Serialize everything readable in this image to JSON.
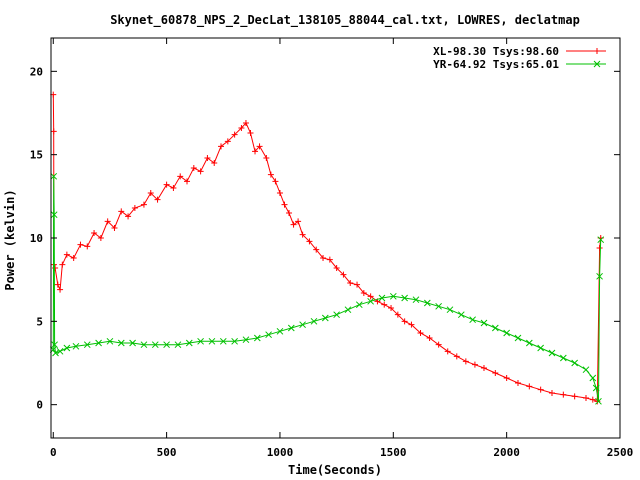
{
  "chart_data": {
    "type": "line",
    "title": "Skynet_60878_NPS_2_DecLat_138105_88044_cal.txt, LOWRES, declatmap",
    "xlabel": "Time(Seconds)",
    "ylabel": "Power (kelvin)",
    "xlim": [
      -10,
      2500
    ],
    "ylim": [
      -2,
      22
    ],
    "x_ticks": [
      0,
      500,
      1000,
      1500,
      2000,
      2500
    ],
    "y_ticks": [
      0,
      5,
      10,
      15,
      20
    ],
    "grid": false,
    "legend_position": "top-right",
    "series": [
      {
        "name": "XL-98.30 Tsys:98.60",
        "color": "#ff0000",
        "marker": "plus",
        "points": [
          [
            0,
            18.6
          ],
          [
            2,
            16.4
          ],
          [
            3,
            8.4
          ],
          [
            8,
            8.2
          ],
          [
            20,
            7.2
          ],
          [
            30,
            6.9
          ],
          [
            40,
            8.4
          ],
          [
            60,
            9.0
          ],
          [
            90,
            8.8
          ],
          [
            120,
            9.6
          ],
          [
            150,
            9.5
          ],
          [
            180,
            10.3
          ],
          [
            210,
            10.0
          ],
          [
            240,
            11.0
          ],
          [
            270,
            10.6
          ],
          [
            300,
            11.6
          ],
          [
            330,
            11.3
          ],
          [
            360,
            11.8
          ],
          [
            400,
            12.0
          ],
          [
            430,
            12.7
          ],
          [
            460,
            12.3
          ],
          [
            500,
            13.2
          ],
          [
            530,
            13.0
          ],
          [
            560,
            13.7
          ],
          [
            590,
            13.4
          ],
          [
            620,
            14.2
          ],
          [
            650,
            14.0
          ],
          [
            680,
            14.8
          ],
          [
            710,
            14.5
          ],
          [
            740,
            15.5
          ],
          [
            770,
            15.8
          ],
          [
            800,
            16.2
          ],
          [
            830,
            16.6
          ],
          [
            850,
            16.9
          ],
          [
            870,
            16.3
          ],
          [
            890,
            15.2
          ],
          [
            910,
            15.5
          ],
          [
            940,
            14.8
          ],
          [
            960,
            13.8
          ],
          [
            980,
            13.4
          ],
          [
            1000,
            12.7
          ],
          [
            1020,
            12.0
          ],
          [
            1040,
            11.5
          ],
          [
            1060,
            10.8
          ],
          [
            1080,
            11.0
          ],
          [
            1100,
            10.2
          ],
          [
            1130,
            9.8
          ],
          [
            1160,
            9.3
          ],
          [
            1190,
            8.8
          ],
          [
            1220,
            8.7
          ],
          [
            1250,
            8.2
          ],
          [
            1280,
            7.8
          ],
          [
            1310,
            7.3
          ],
          [
            1340,
            7.2
          ],
          [
            1370,
            6.7
          ],
          [
            1400,
            6.5
          ],
          [
            1430,
            6.2
          ],
          [
            1460,
            6.0
          ],
          [
            1490,
            5.8
          ],
          [
            1520,
            5.4
          ],
          [
            1550,
            5.0
          ],
          [
            1580,
            4.8
          ],
          [
            1620,
            4.3
          ],
          [
            1660,
            4.0
          ],
          [
            1700,
            3.6
          ],
          [
            1740,
            3.2
          ],
          [
            1780,
            2.9
          ],
          [
            1820,
            2.6
          ],
          [
            1860,
            2.4
          ],
          [
            1900,
            2.2
          ],
          [
            1950,
            1.9
          ],
          [
            2000,
            1.6
          ],
          [
            2050,
            1.3
          ],
          [
            2100,
            1.1
          ],
          [
            2150,
            0.9
          ],
          [
            2200,
            0.7
          ],
          [
            2250,
            0.6
          ],
          [
            2300,
            0.5
          ],
          [
            2350,
            0.4
          ],
          [
            2380,
            0.3
          ],
          [
            2400,
            0.2
          ],
          [
            2410,
            9.4
          ],
          [
            2415,
            10.0
          ]
        ]
      },
      {
        "name": "YR-64.92 Tsys:65.01",
        "color": "#00c000",
        "marker": "cross",
        "points": [
          [
            0,
            3.3
          ],
          [
            2,
            13.7
          ],
          [
            4,
            11.4
          ],
          [
            6,
            3.6
          ],
          [
            10,
            3.1
          ],
          [
            30,
            3.2
          ],
          [
            60,
            3.4
          ],
          [
            100,
            3.5
          ],
          [
            150,
            3.6
          ],
          [
            200,
            3.7
          ],
          [
            250,
            3.8
          ],
          [
            300,
            3.7
          ],
          [
            350,
            3.7
          ],
          [
            400,
            3.6
          ],
          [
            450,
            3.6
          ],
          [
            500,
            3.6
          ],
          [
            550,
            3.6
          ],
          [
            600,
            3.7
          ],
          [
            650,
            3.8
          ],
          [
            700,
            3.8
          ],
          [
            750,
            3.8
          ],
          [
            800,
            3.8
          ],
          [
            850,
            3.9
          ],
          [
            900,
            4.0
          ],
          [
            950,
            4.2
          ],
          [
            1000,
            4.4
          ],
          [
            1050,
            4.6
          ],
          [
            1100,
            4.8
          ],
          [
            1150,
            5.0
          ],
          [
            1200,
            5.2
          ],
          [
            1250,
            5.4
          ],
          [
            1300,
            5.7
          ],
          [
            1350,
            6.0
          ],
          [
            1400,
            6.2
          ],
          [
            1450,
            6.4
          ],
          [
            1500,
            6.5
          ],
          [
            1550,
            6.4
          ],
          [
            1600,
            6.3
          ],
          [
            1650,
            6.1
          ],
          [
            1700,
            5.9
          ],
          [
            1750,
            5.7
          ],
          [
            1800,
            5.4
          ],
          [
            1850,
            5.1
          ],
          [
            1900,
            4.9
          ],
          [
            1950,
            4.6
          ],
          [
            2000,
            4.3
          ],
          [
            2050,
            4.0
          ],
          [
            2100,
            3.7
          ],
          [
            2150,
            3.4
          ],
          [
            2200,
            3.1
          ],
          [
            2250,
            2.8
          ],
          [
            2300,
            2.5
          ],
          [
            2350,
            2.1
          ],
          [
            2380,
            1.6
          ],
          [
            2395,
            1.0
          ],
          [
            2405,
            0.2
          ],
          [
            2410,
            7.7
          ],
          [
            2415,
            9.9
          ]
        ]
      }
    ]
  }
}
